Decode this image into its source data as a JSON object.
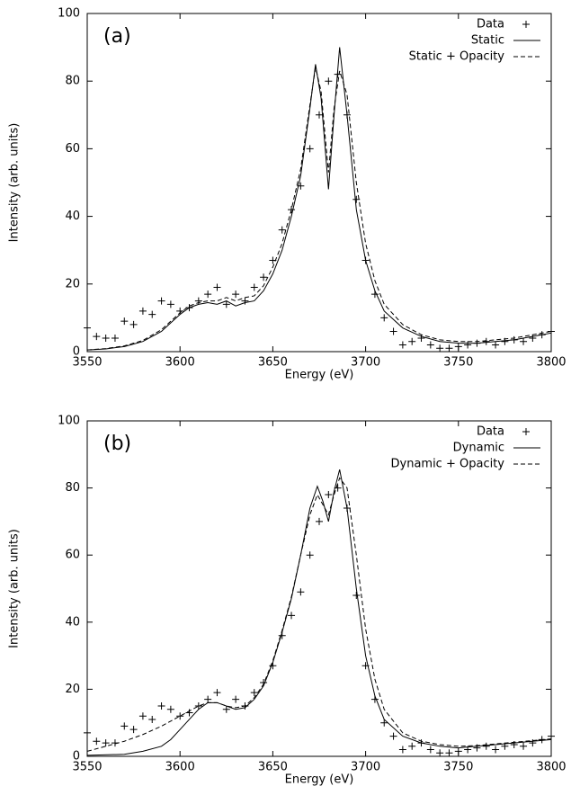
{
  "chart_data": [
    {
      "type": "line",
      "annotation": "(a)",
      "xlabel": "Energy (eV)",
      "ylabel": "Intensity (arb. units)",
      "xlim": [
        3550,
        3800
      ],
      "ylim": [
        0,
        100
      ],
      "xticks": [
        3550,
        3600,
        3650,
        3700,
        3750,
        3800
      ],
      "yticks": [
        0,
        20,
        40,
        60,
        80,
        100
      ],
      "legend": "top-right",
      "series": [
        {
          "name": "Data",
          "style": "points",
          "color": "#000000",
          "x": [
            3550,
            3555,
            3560,
            3565,
            3570,
            3575,
            3580,
            3585,
            3590,
            3595,
            3600,
            3605,
            3610,
            3615,
            3620,
            3625,
            3630,
            3635,
            3640,
            3645,
            3650,
            3655,
            3660,
            3665,
            3670,
            3675,
            3680,
            3685,
            3690,
            3695,
            3700,
            3705,
            3710,
            3715,
            3720,
            3725,
            3730,
            3735,
            3740,
            3745,
            3750,
            3755,
            3760,
            3765,
            3770,
            3775,
            3780,
            3785,
            3790,
            3795,
            3800
          ],
          "values": [
            7,
            4.5,
            4,
            4,
            9,
            8,
            12,
            11,
            15,
            14,
            12,
            13,
            15,
            17,
            19,
            14,
            17,
            15,
            19,
            22,
            27,
            36,
            42,
            49,
            60,
            70,
            80,
            82,
            70,
            45,
            27,
            17,
            10,
            6,
            2,
            3,
            4,
            2,
            1,
            1,
            1.5,
            2,
            2.5,
            3,
            2,
            3,
            3.5,
            3,
            4,
            5,
            6
          ]
        },
        {
          "name": "Static",
          "style": "solid",
          "color": "#000000",
          "x": [
            3550,
            3560,
            3570,
            3580,
            3590,
            3595,
            3600,
            3605,
            3610,
            3615,
            3620,
            3625,
            3630,
            3635,
            3640,
            3645,
            3650,
            3655,
            3660,
            3665,
            3670,
            3673,
            3676,
            3680,
            3683,
            3686,
            3690,
            3695,
            3700,
            3705,
            3710,
            3720,
            3730,
            3740,
            3750,
            3760,
            3770,
            3780,
            3790,
            3800
          ],
          "values": [
            0.5,
            0.8,
            1.5,
            3,
            6,
            8.5,
            11,
            13,
            14,
            14.5,
            14,
            15,
            13.5,
            14.5,
            15,
            18,
            23,
            30,
            40,
            52,
            72,
            85,
            75,
            48,
            70,
            90,
            70,
            42,
            27,
            18,
            12,
            7,
            4.5,
            3,
            2.5,
            2.5,
            3,
            3.5,
            4.5,
            5.5
          ]
        },
        {
          "name": "Static + Opacity",
          "style": "dashed",
          "color": "#000000",
          "x": [
            3550,
            3560,
            3570,
            3580,
            3590,
            3595,
            3600,
            3605,
            3610,
            3615,
            3620,
            3625,
            3630,
            3635,
            3640,
            3645,
            3650,
            3655,
            3660,
            3665,
            3670,
            3673,
            3676,
            3680,
            3683,
            3686,
            3690,
            3695,
            3700,
            3705,
            3710,
            3720,
            3730,
            3740,
            3750,
            3760,
            3770,
            3780,
            3790,
            3800
          ],
          "values": [
            0.5,
            0.9,
            1.7,
            3.3,
            6.5,
            9,
            11.5,
            13.5,
            14.5,
            15,
            15,
            16,
            15,
            16,
            16.5,
            19.5,
            25,
            32,
            42,
            54,
            73,
            84,
            77,
            53,
            72,
            83,
            76,
            50,
            32,
            21,
            14,
            8,
            5,
            3.5,
            3,
            3,
            3.5,
            4,
            5,
            6
          ]
        }
      ]
    },
    {
      "type": "line",
      "annotation": "(b)",
      "xlabel": "Energy (eV)",
      "ylabel": "Intensity (arb. units)",
      "xlim": [
        3550,
        3800
      ],
      "ylim": [
        0,
        100
      ],
      "xticks": [
        3550,
        3600,
        3650,
        3700,
        3750,
        3800
      ],
      "yticks": [
        0,
        20,
        40,
        60,
        80,
        100
      ],
      "legend": "top-right",
      "series": [
        {
          "name": "Data",
          "style": "points",
          "color": "#000000",
          "x": [
            3550,
            3555,
            3560,
            3565,
            3570,
            3575,
            3580,
            3585,
            3590,
            3595,
            3600,
            3605,
            3610,
            3615,
            3620,
            3625,
            3630,
            3635,
            3640,
            3645,
            3650,
            3655,
            3660,
            3665,
            3670,
            3675,
            3680,
            3685,
            3690,
            3695,
            3700,
            3705,
            3710,
            3715,
            3720,
            3725,
            3730,
            3735,
            3740,
            3745,
            3750,
            3755,
            3760,
            3765,
            3770,
            3775,
            3780,
            3785,
            3790,
            3795,
            3800
          ],
          "values": [
            7,
            4.5,
            4,
            4,
            9,
            8,
            12,
            11,
            15,
            14,
            12,
            13,
            15,
            17,
            19,
            14,
            17,
            15,
            19,
            22,
            27,
            36,
            42,
            49,
            60,
            70,
            78,
            80,
            74,
            48,
            27,
            17,
            10,
            6,
            2,
            3,
            4,
            2,
            1,
            1,
            1.5,
            2,
            2.5,
            3,
            2,
            3,
            3.5,
            3,
            4,
            5,
            6
          ]
        },
        {
          "name": "Dynamic",
          "style": "solid",
          "color": "#000000",
          "x": [
            3550,
            3570,
            3580,
            3590,
            3595,
            3600,
            3605,
            3610,
            3615,
            3620,
            3625,
            3630,
            3635,
            3640,
            3645,
            3650,
            3655,
            3660,
            3665,
            3670,
            3674,
            3677,
            3680,
            3683,
            3686,
            3690,
            3695,
            3700,
            3705,
            3710,
            3720,
            3730,
            3740,
            3750,
            3760,
            3770,
            3780,
            3790,
            3800
          ],
          "values": [
            0.3,
            0.6,
            1.5,
            3,
            5,
            8,
            11,
            14,
            16,
            16,
            15,
            14,
            14.5,
            17,
            21,
            28,
            37,
            47,
            60,
            74,
            80.5,
            76,
            70,
            79,
            85.5,
            74,
            50,
            30,
            18,
            11,
            6,
            4,
            3,
            2.5,
            3,
            3.5,
            4,
            4.5,
            5
          ]
        },
        {
          "name": "Dynamic + Opacity",
          "style": "dashed",
          "color": "#000000",
          "x": [
            3550,
            3560,
            3570,
            3580,
            3590,
            3600,
            3610,
            3615,
            3620,
            3625,
            3630,
            3635,
            3640,
            3645,
            3650,
            3655,
            3660,
            3665,
            3670,
            3674,
            3677,
            3680,
            3683,
            3686,
            3690,
            3695,
            3700,
            3705,
            3710,
            3720,
            3730,
            3740,
            3750,
            3760,
            3770,
            3780,
            3790,
            3800
          ],
          "values": [
            1.5,
            3,
            4.5,
            6.5,
            9,
            12,
            15,
            16,
            16,
            15,
            14.5,
            15,
            17.5,
            21.5,
            28.5,
            37.5,
            47.5,
            60,
            72,
            78,
            75,
            72,
            78,
            83,
            80,
            60,
            38,
            23,
            14,
            7,
            4.5,
            3.5,
            3,
            3.2,
            3.7,
            4.2,
            4.7,
            5.2
          ]
        }
      ]
    }
  ]
}
